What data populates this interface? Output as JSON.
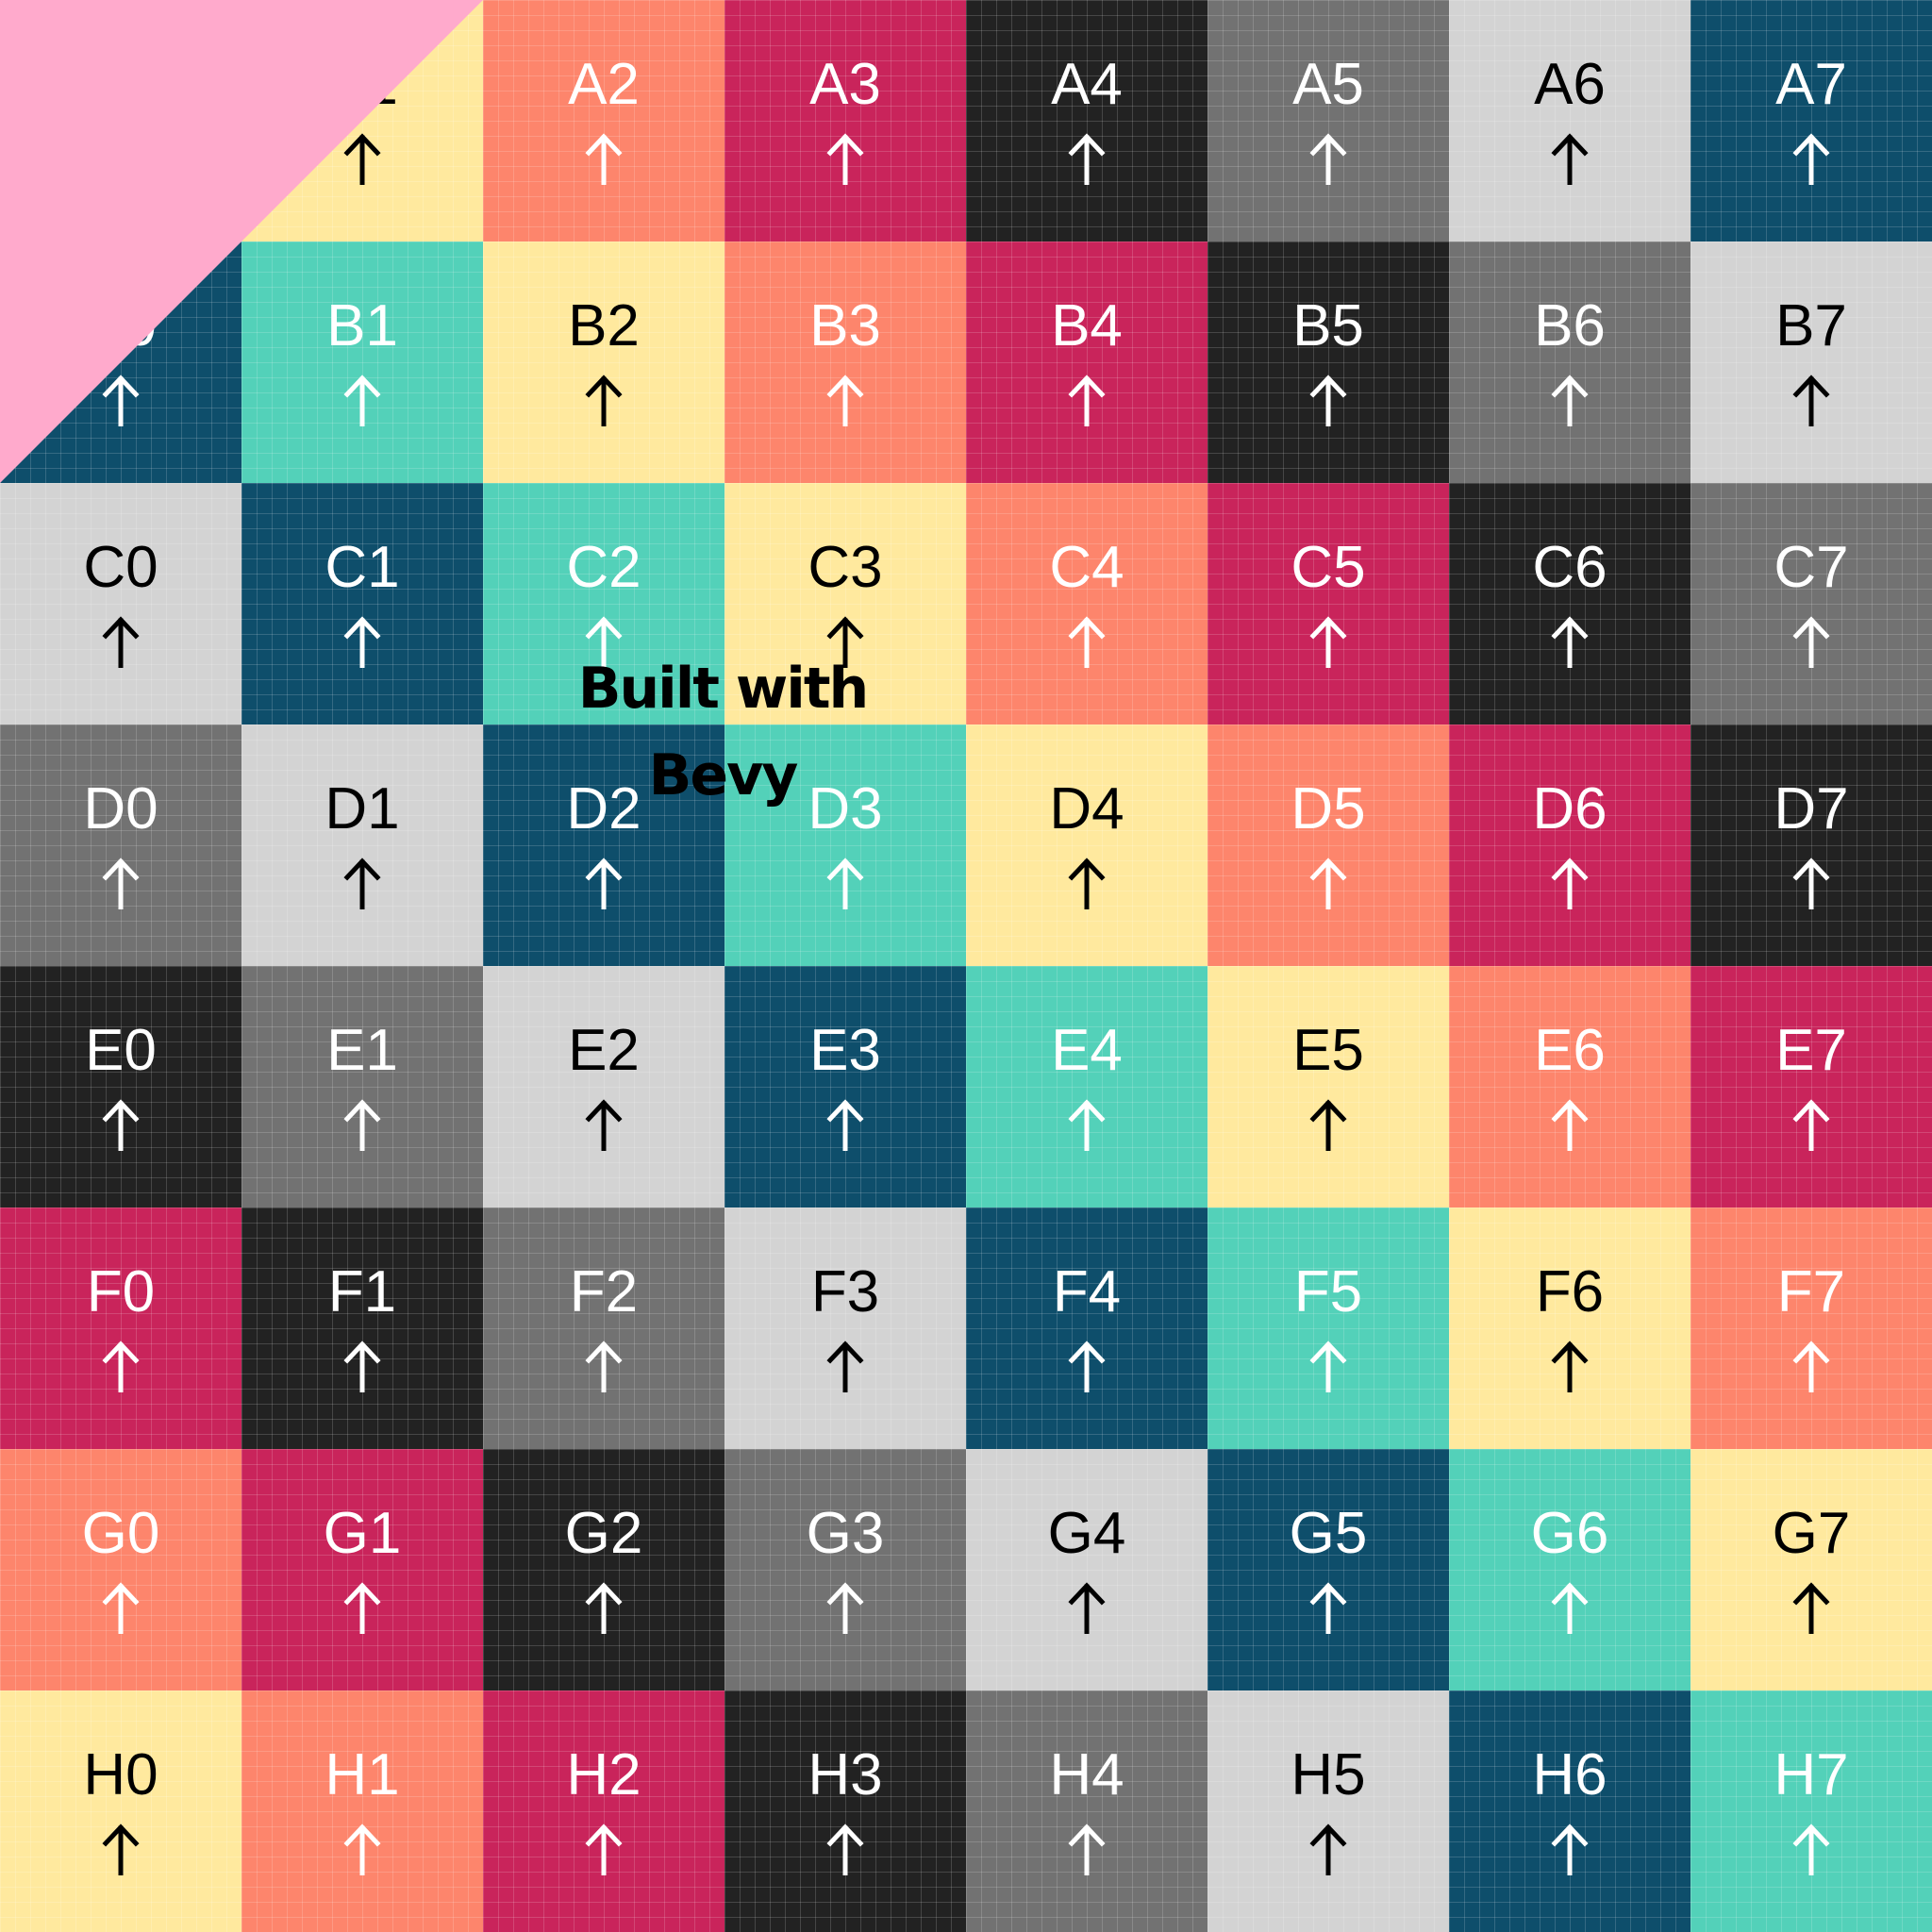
{
  "palette": {
    "teal": "#53d1b9",
    "yellow": "#ffe99e",
    "coral": "#fd856c",
    "crimson": "#c9245b",
    "black": "#222222",
    "gray": "#727272",
    "light-gray": "#d3d3d3",
    "navy": "#0e4e6b",
    "corner-pink": "#ffaacc"
  },
  "rows": [
    "A",
    "B",
    "C",
    "D",
    "E",
    "F",
    "G",
    "H"
  ],
  "columns": [
    "0",
    "1",
    "2",
    "3",
    "4",
    "5",
    "6",
    "7"
  ],
  "cell_sequence": [
    "teal",
    "yellow",
    "coral",
    "crimson",
    "black",
    "gray",
    "light-gray",
    "navy"
  ],
  "arrow_icon": "arrow-up-icon",
  "logo": {
    "line1": "Built with",
    "line2": "Bevy"
  }
}
